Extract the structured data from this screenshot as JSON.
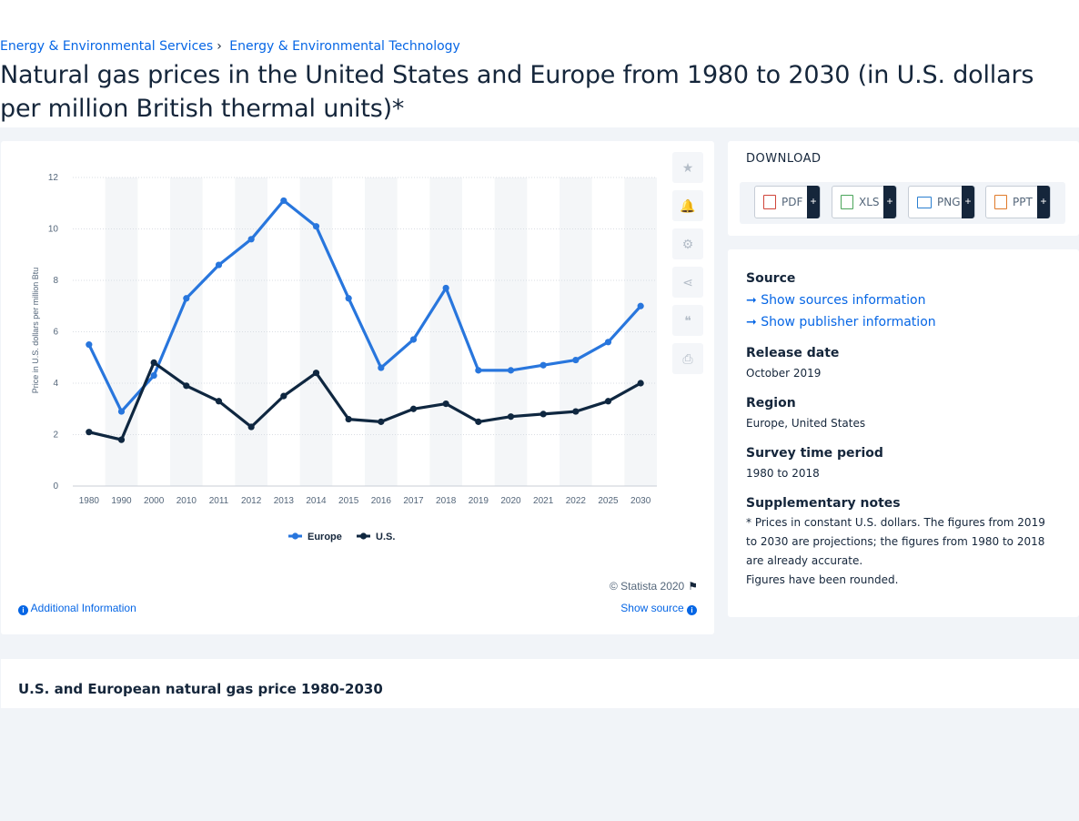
{
  "breadcrumb": {
    "items": [
      "Energy & Environmental Services",
      "Energy & Environmental Technology"
    ],
    "separator": "›"
  },
  "title": "Natural gas prices in the United States and Europe from 1980 to 2030 (in U.S. dollars per million British thermal units)*",
  "chart_data": {
    "type": "line",
    "categories": [
      "1980",
      "1990",
      "2000",
      "2010",
      "2011",
      "2012",
      "2013",
      "2014",
      "2015",
      "2016",
      "2017",
      "2018",
      "2019",
      "2020",
      "2021",
      "2022",
      "2025",
      "2030"
    ],
    "series": [
      {
        "name": "Europe",
        "color": "#2876dd",
        "values": [
          5.5,
          2.9,
          4.3,
          7.3,
          8.6,
          9.6,
          11.1,
          10.1,
          7.3,
          4.6,
          5.7,
          7.7,
          4.5,
          4.5,
          4.7,
          4.9,
          5.6,
          7.0
        ]
      },
      {
        "name": "U.S.",
        "color": "#0f2740",
        "values": [
          2.1,
          1.8,
          4.8,
          3.9,
          3.3,
          2.3,
          3.5,
          4.4,
          2.6,
          2.5,
          3.0,
          3.2,
          2.5,
          2.7,
          2.8,
          2.9,
          3.3,
          4.0
        ]
      }
    ],
    "ylabel": "Price in U.S. dollars per million Btu",
    "xlabel": "",
    "ylim": [
      0,
      12
    ],
    "yticks": [
      0,
      2,
      4,
      6,
      8,
      10,
      12
    ],
    "grid": true,
    "legend": "bottom-center"
  },
  "tools": {
    "icons": [
      "star-icon",
      "bell-icon",
      "gear-icon",
      "share-icon",
      "quote-icon",
      "print-icon"
    ],
    "glyphs": [
      "★",
      "🔔",
      "⚙",
      "⋖",
      "❝",
      "⎙"
    ]
  },
  "chart_footer": {
    "credit": "© Statista 2020",
    "additional_info": "Additional Information",
    "show_source": "Show source"
  },
  "download": {
    "title": "DOWNLOAD",
    "buttons": [
      {
        "label": "PDF",
        "plus": "+",
        "color": "#d0453a"
      },
      {
        "label": "XLS",
        "plus": "+",
        "color": "#4aa55a"
      },
      {
        "label": "PNG",
        "plus": "+",
        "color": "#2a7fd0"
      },
      {
        "label": "PPT",
        "plus": "+",
        "color": "#e07a2a"
      }
    ]
  },
  "info": {
    "source_heading": "Source",
    "show_sources": "Show sources information",
    "show_publisher": "Show publisher information",
    "release_heading": "Release date",
    "release_value": "October 2019",
    "region_heading": "Region",
    "region_value": "Europe, United States",
    "survey_heading": "Survey time period",
    "survey_value": "1980 to 2018",
    "notes_heading": "Supplementary notes",
    "notes_line1": "* Prices in constant U.S. dollars. The figures from 2019 to 2030 are projections; the figures from 1980 to 2018 are already accurate.",
    "notes_line2": "Figures have been rounded."
  },
  "bottom": {
    "title": "U.S. and European natural gas price 1980-2030"
  }
}
